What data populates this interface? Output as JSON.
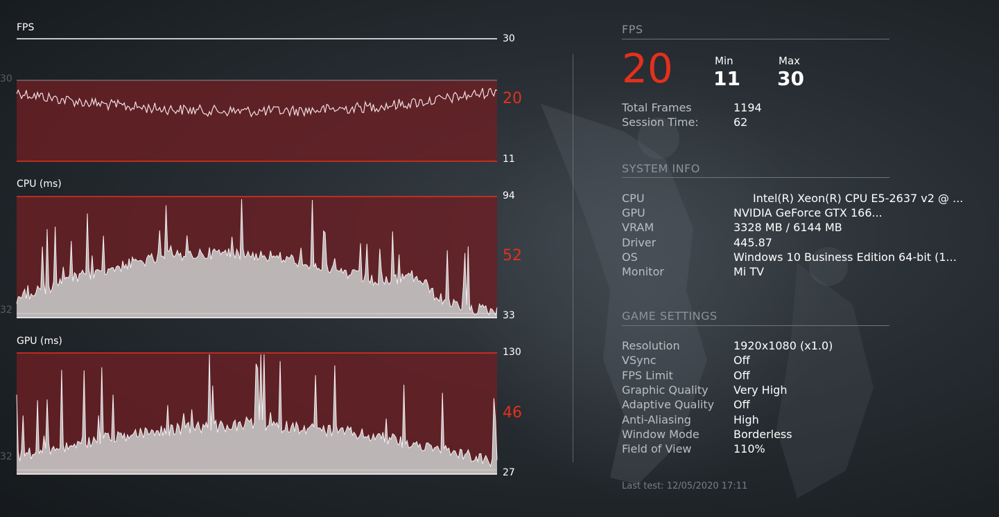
{
  "charts": {
    "fps": {
      "title": "FPS",
      "max_label": "30",
      "current": "20",
      "min_label": "11",
      "ghost_label": "30",
      "colors": {
        "band": "#6b1f24",
        "line": "#f4e0e3",
        "accent": "#e5301c"
      }
    },
    "cpu": {
      "title": "CPU (ms)",
      "max_label": "94",
      "current": "52",
      "min_label": "33",
      "ghost_label": "32",
      "colors": {
        "band": "#6b1f24",
        "fill": "#c9c9c9",
        "line": "#f8f0f2"
      }
    },
    "gpu": {
      "title": "GPU (ms)",
      "max_label": "130",
      "current": "46",
      "min_label": "27",
      "ghost_label": "32",
      "colors": {
        "band": "#6b1f24",
        "fill": "#c9c9c9",
        "line": "#f8f0f2"
      }
    }
  },
  "chart_data": [
    {
      "type": "line",
      "title": "FPS",
      "ylim": [
        11,
        30
      ],
      "samples": 300,
      "mean": 20,
      "min": 11,
      "max": 30
    },
    {
      "type": "area",
      "title": "CPU (ms)",
      "ylim": [
        33,
        94
      ],
      "samples": 300,
      "current": 52
    },
    {
      "type": "area",
      "title": "GPU (ms)",
      "ylim": [
        27,
        130
      ],
      "samples": 300,
      "current": 46
    }
  ],
  "stats": {
    "section_title": "FPS",
    "current_fps": "20",
    "min_label": "Min",
    "min_value": "11",
    "max_label": "Max",
    "max_value": "30",
    "total_frames_label": "Total Frames",
    "total_frames_value": "1194",
    "session_time_label": "Session Time:",
    "session_time_value": "62"
  },
  "system_info": {
    "title": "SYSTEM INFO",
    "items": [
      {
        "label": "CPU",
        "value": "Intel(R) Xeon(R) CPU E5-2637 v2 @ ..."
      },
      {
        "label": "GPU",
        "value": "NVIDIA GeForce GTX 166..."
      },
      {
        "label": "VRAM",
        "value": "3328 MB / 6144 MB"
      },
      {
        "label": "Driver",
        "value": "445.87"
      },
      {
        "label": "OS",
        "value": "Windows 10 Business Edition 64-bit (1..."
      },
      {
        "label": "Monitor",
        "value": "Mi TV"
      }
    ]
  },
  "game_settings": {
    "title": "GAME SETTINGS",
    "items": [
      {
        "label": "Resolution",
        "value": "1920x1080 (x1.0)"
      },
      {
        "label": "VSync",
        "value": "Off"
      },
      {
        "label": "FPS Limit",
        "value": "Off"
      },
      {
        "label": "Graphic Quality",
        "value": "Very High"
      },
      {
        "label": "Adaptive Quality",
        "value": "Off"
      },
      {
        "label": "Anti-Aliasing",
        "value": "High"
      },
      {
        "label": "Window Mode",
        "value": "Borderless"
      },
      {
        "label": "Field of View",
        "value": "110%"
      }
    ]
  },
  "footer": {
    "last_test": "Last test: 12/05/2020 17:11"
  }
}
